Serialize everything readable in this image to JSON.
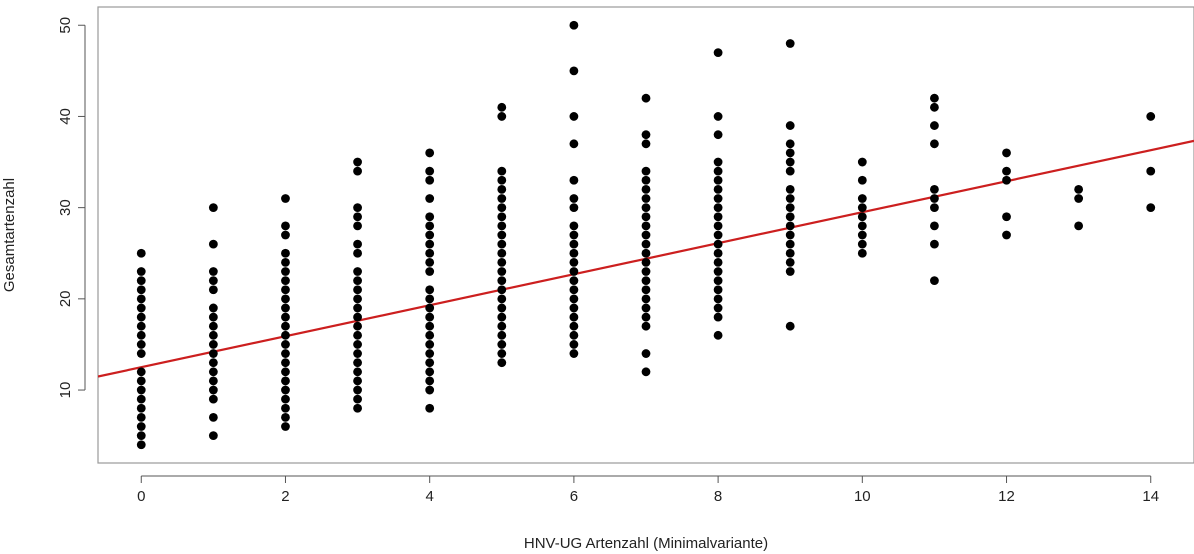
{
  "chart_data": {
    "type": "scatter",
    "title": "",
    "xlabel": "HNV-UG Artenzahl (Minimalvariante)",
    "ylabel": "Gesamtartenzahl",
    "xlim": [
      -0.6,
      14.6
    ],
    "ylim": [
      2.0,
      52.0
    ],
    "xticks": [
      0,
      2,
      4,
      6,
      8,
      10,
      12,
      14
    ],
    "yticks": [
      10,
      20,
      30,
      40,
      50
    ],
    "grid": false,
    "legend": "none",
    "point_color": "#000000",
    "series": [
      {
        "values": [
          {
            "x": 0,
            "y": [
              4,
              5,
              6,
              7,
              8,
              9,
              10,
              11,
              12,
              14,
              15,
              16,
              17,
              18,
              19,
              20,
              21,
              22,
              23,
              25
            ]
          },
          {
            "x": 1,
            "y": [
              5,
              7,
              9,
              10,
              11,
              12,
              13,
              14,
              15,
              16,
              17,
              18,
              19,
              21,
              22,
              23,
              26,
              30
            ]
          },
          {
            "x": 2,
            "y": [
              6,
              7,
              8,
              9,
              10,
              11,
              12,
              13,
              14,
              15,
              16,
              17,
              18,
              19,
              20,
              21,
              22,
              23,
              24,
              25,
              27,
              28,
              31
            ]
          },
          {
            "x": 3,
            "y": [
              8,
              9,
              10,
              11,
              12,
              13,
              14,
              15,
              16,
              17,
              18,
              19,
              20,
              21,
              22,
              23,
              25,
              26,
              28,
              29,
              30,
              34,
              35
            ]
          },
          {
            "x": 4,
            "y": [
              8,
              10,
              11,
              12,
              13,
              14,
              15,
              16,
              17,
              18,
              19,
              20,
              21,
              23,
              24,
              25,
              26,
              27,
              28,
              29,
              31,
              33,
              34,
              36
            ]
          },
          {
            "x": 5,
            "y": [
              13,
              14,
              15,
              16,
              17,
              18,
              19,
              20,
              21,
              22,
              23,
              24,
              25,
              26,
              27,
              28,
              29,
              30,
              31,
              32,
              33,
              34,
              40,
              41
            ]
          },
          {
            "x": 6,
            "y": [
              14,
              15,
              16,
              17,
              18,
              19,
              20,
              21,
              22,
              23,
              24,
              25,
              26,
              27,
              28,
              30,
              31,
              33,
              37,
              40,
              45,
              50
            ]
          },
          {
            "x": 7,
            "y": [
              12,
              14,
              17,
              18,
              19,
              20,
              21,
              22,
              23,
              24,
              25,
              26,
              27,
              28,
              29,
              30,
              31,
              32,
              33,
              34,
              37,
              38,
              42
            ]
          },
          {
            "x": 8,
            "y": [
              16,
              18,
              19,
              20,
              21,
              22,
              23,
              24,
              25,
              26,
              27,
              28,
              29,
              30,
              31,
              32,
              33,
              34,
              35,
              38,
              40,
              47
            ]
          },
          {
            "x": 9,
            "y": [
              17,
              23,
              24,
              25,
              26,
              27,
              28,
              29,
              30,
              31,
              32,
              34,
              35,
              36,
              37,
              39,
              48
            ]
          },
          {
            "x": 10,
            "y": [
              25,
              26,
              27,
              28,
              29,
              30,
              31,
              33,
              35
            ]
          },
          {
            "x": 11,
            "y": [
              22,
              26,
              28,
              30,
              31,
              32,
              37,
              39,
              41,
              42
            ]
          },
          {
            "x": 12,
            "y": [
              27,
              29,
              33,
              34,
              36
            ]
          },
          {
            "x": 13,
            "y": [
              28,
              31,
              32
            ]
          },
          {
            "x": 14,
            "y": [
              30,
              34,
              40
            ]
          }
        ]
      }
    ],
    "fit_line": {
      "intercept": 12.5,
      "slope": 1.7,
      "color": "#cc1f1f"
    }
  }
}
